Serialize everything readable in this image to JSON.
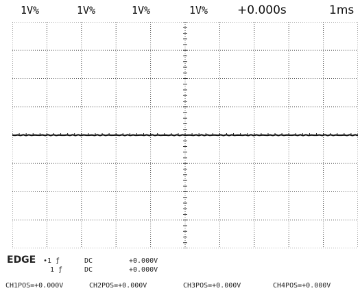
{
  "header": {
    "ch1_scale": "1V%",
    "ch2_scale": "1V%",
    "ch3_scale": "1V%",
    "ch4_scale": "1V%",
    "time_offset": "+0.000s",
    "timebase": "1ms"
  },
  "trigger": {
    "mode": "EDGE",
    "row1": {
      "source": "•1 ƒ",
      "coupling": "DC",
      "level": "+0.000V"
    },
    "row2": {
      "source": "1 ƒ",
      "coupling": "DC",
      "level": "+0.000V"
    }
  },
  "positions": [
    {
      "label": "CH1POS=+0.000V"
    },
    {
      "label": "CH2POS=+0.000V"
    },
    {
      "label": "CH3POS=+0.000V"
    },
    {
      "label": "CH4POS=+0.000V"
    }
  ],
  "trace": {
    "level_divisions": 0,
    "color": "#111111"
  },
  "colors": {
    "grid": "#555555",
    "background": "#ffffff"
  }
}
